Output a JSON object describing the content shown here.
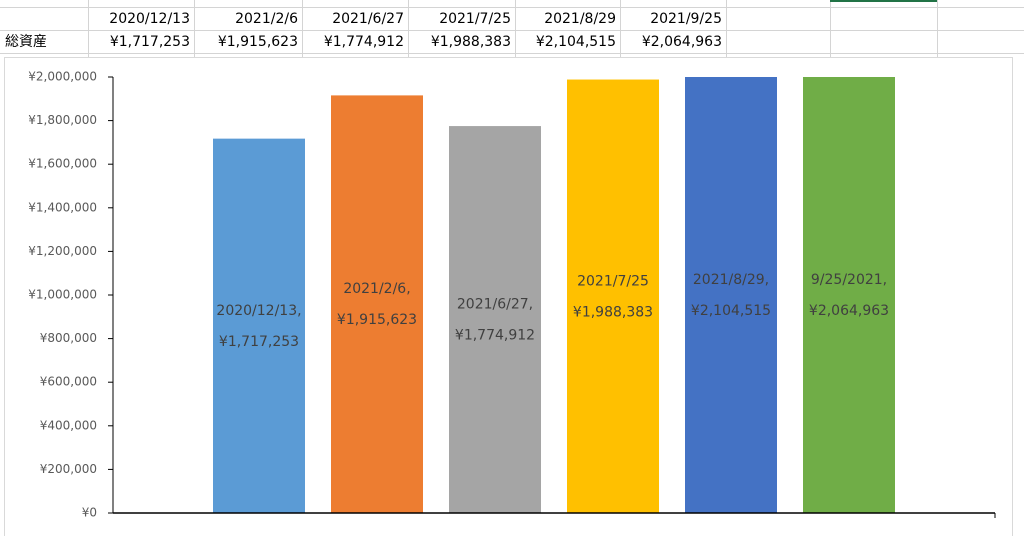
{
  "table": {
    "header": [
      "2020/12/13",
      "2021/2/6",
      "2021/6/27",
      "2021/7/25",
      "2021/8/29",
      "2021/9/25"
    ],
    "rows": [
      [
        "総資産",
        "¥1,717,253",
        "¥1,915,623",
        "¥1,774,912",
        "¥1,988,383",
        "¥2,104,515",
        "¥2,064,963"
      ]
    ]
  },
  "chart_data": {
    "type": "bar",
    "categories": [
      "2020/12/13,",
      "2021/2/6,",
      "2021/6/27,",
      "2021/7/25",
      "2021/8/29,",
      "9/25/2021,"
    ],
    "values": [
      1717253,
      1915623,
      1774912,
      1988383,
      2104515,
      2064963
    ],
    "value_labels": [
      "¥1,717,253",
      "¥1,915,623",
      "¥1,774,912",
      "¥1,988,383",
      "¥2,104,515",
      "¥2,064,963"
    ],
    "colors": [
      "#5b9bd5",
      "#ed7d31",
      "#a5a5a5",
      "#ffc000",
      "#4472c4",
      "#70ad47"
    ],
    "ylim": [
      0,
      2000000
    ],
    "yticks": [
      {
        "value": 0,
        "label": "¥0"
      },
      {
        "value": 200000,
        "label": "¥200,000"
      },
      {
        "value": 400000,
        "label": "¥400,000"
      },
      {
        "value": 600000,
        "label": "¥600,000"
      },
      {
        "value": 800000,
        "label": "¥800,000"
      },
      {
        "value": 1000000,
        "label": "¥1,000,000"
      },
      {
        "value": 1200000,
        "label": "¥1,200,000"
      },
      {
        "value": 1400000,
        "label": "¥1,400,000"
      },
      {
        "value": 1600000,
        "label": "¥1,600,000"
      },
      {
        "value": 1800000,
        "label": "¥1,800,000"
      },
      {
        "value": 2000000,
        "label": "¥2,000,000"
      }
    ],
    "grid": false
  }
}
